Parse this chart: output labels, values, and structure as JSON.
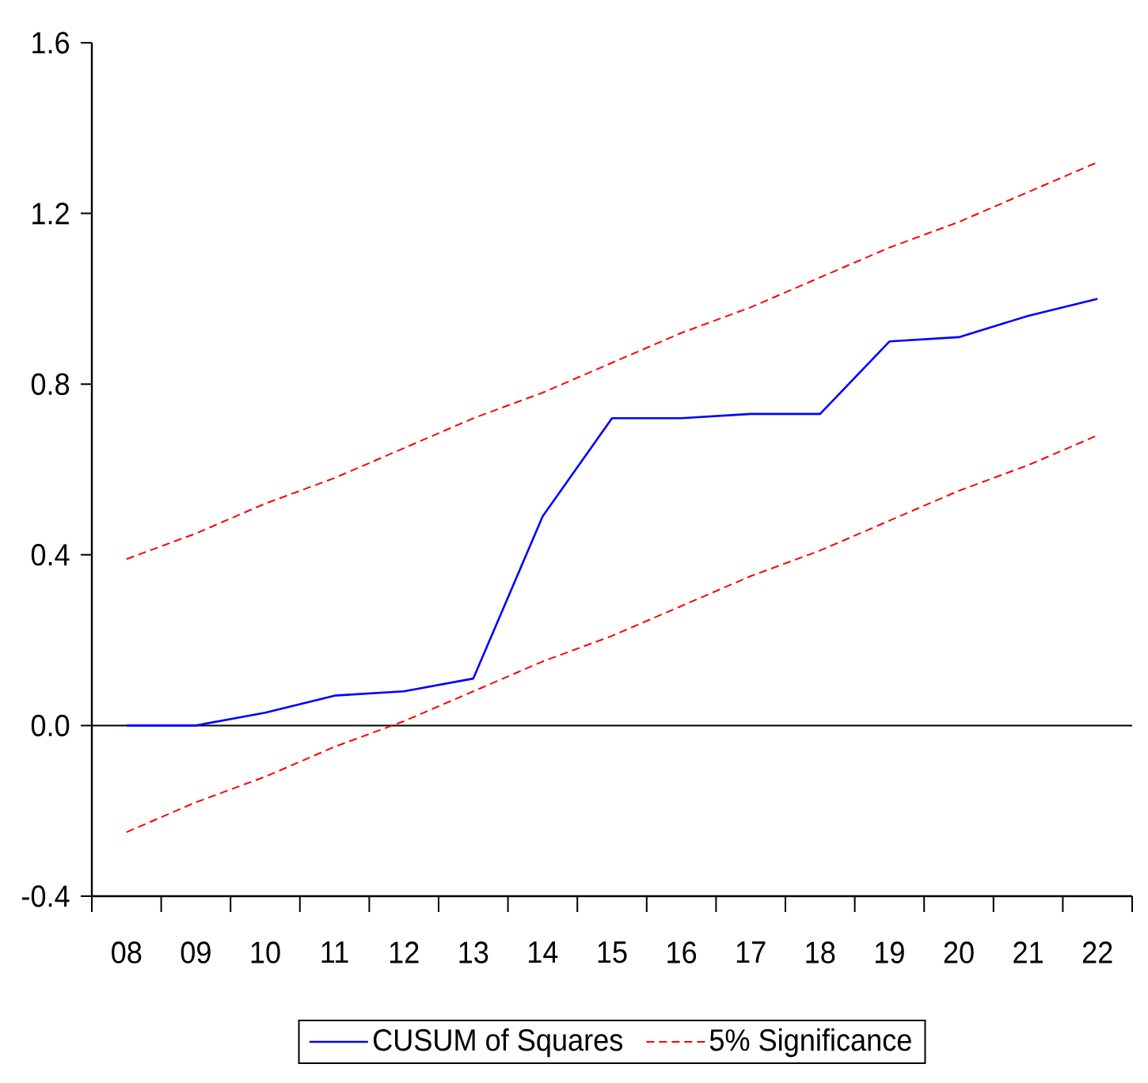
{
  "chart_data": {
    "type": "line",
    "categories": [
      "08",
      "09",
      "10",
      "11",
      "12",
      "13",
      "14",
      "15",
      "16",
      "17",
      "18",
      "19",
      "20",
      "21",
      "22"
    ],
    "series": [
      {
        "name": "CUSUM of Squares",
        "color": "#0000ff",
        "values": [
          0.0,
          0.0,
          0.03,
          0.07,
          0.08,
          0.11,
          0.49,
          0.72,
          0.72,
          0.73,
          0.73,
          0.9,
          0.91,
          0.96,
          1.0
        ]
      },
      {
        "name": "5% Significance",
        "color": "#ff0000",
        "line_style": "dashed",
        "values": [
          0.39,
          0.45,
          0.52,
          0.58,
          0.65,
          0.72,
          0.78,
          0.85,
          0.92,
          0.98,
          1.05,
          1.12,
          1.18,
          1.25,
          1.32
        ]
      },
      {
        "color": "#ff0000",
        "line_style": "dashed",
        "values": [
          -0.25,
          -0.18,
          -0.12,
          -0.05,
          0.01,
          0.08,
          0.15,
          0.21,
          0.28,
          0.35,
          0.41,
          0.48,
          0.55,
          0.61,
          0.68
        ]
      }
    ],
    "ylim": [
      -0.4,
      1.6
    ],
    "yticks": [
      -0.4,
      {
        "value": 0,
        "label": "0.0"
      },
      0.4,
      0.8,
      1.2,
      1.6
    ],
    "ref_lines": [
      {
        "axis": "y",
        "value": 0,
        "color": "#000000"
      }
    ],
    "legend": "bottom",
    "marker": "none",
    "line_style": "solid"
  }
}
